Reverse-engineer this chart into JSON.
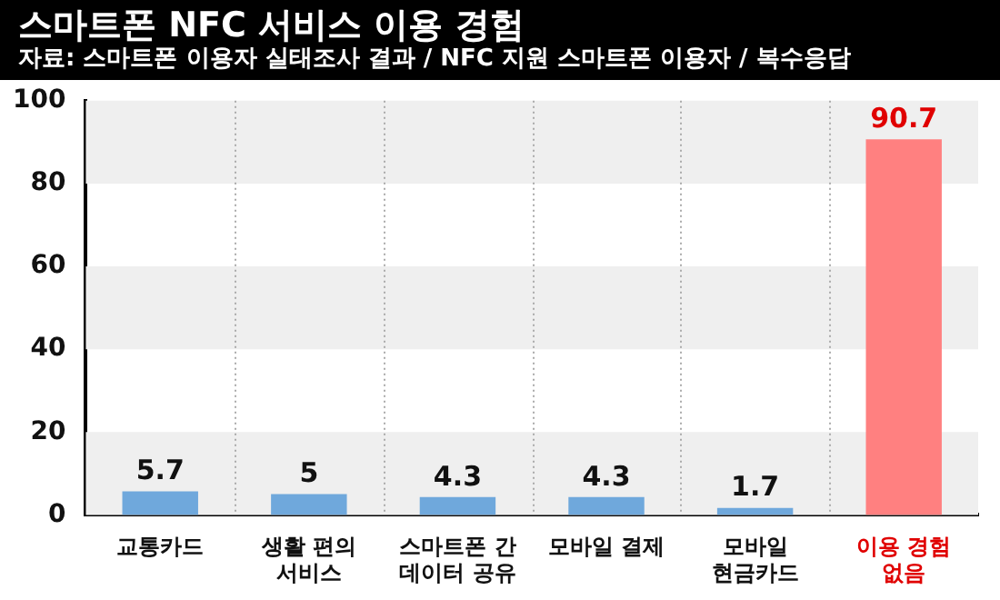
{
  "chart_data": {
    "type": "bar",
    "title": "스마트폰 NFC 서비스 이용 경험",
    "subtitle": "자료: 스마트폰 이용자 실태조사 결과 / NFC 지원 스마트폰 이용자 / 복수응답",
    "categories": [
      "교통카드",
      "생활 편의 서비스",
      "스마트폰 간 데이터 공유",
      "모바일 결제",
      "모바일 현금카드",
      "이용 경험 없음"
    ],
    "values": [
      5.7,
      5,
      4.3,
      4.3,
      1.7,
      90.7
    ],
    "colors": [
      "#6fa8dc",
      "#6fa8dc",
      "#6fa8dc",
      "#6fa8dc",
      "#6fa8dc",
      "#ff8080"
    ],
    "ylim": [
      0,
      100
    ],
    "yticks": [
      0,
      20,
      40,
      60,
      80,
      100
    ],
    "grid": true,
    "data_labels": true
  }
}
